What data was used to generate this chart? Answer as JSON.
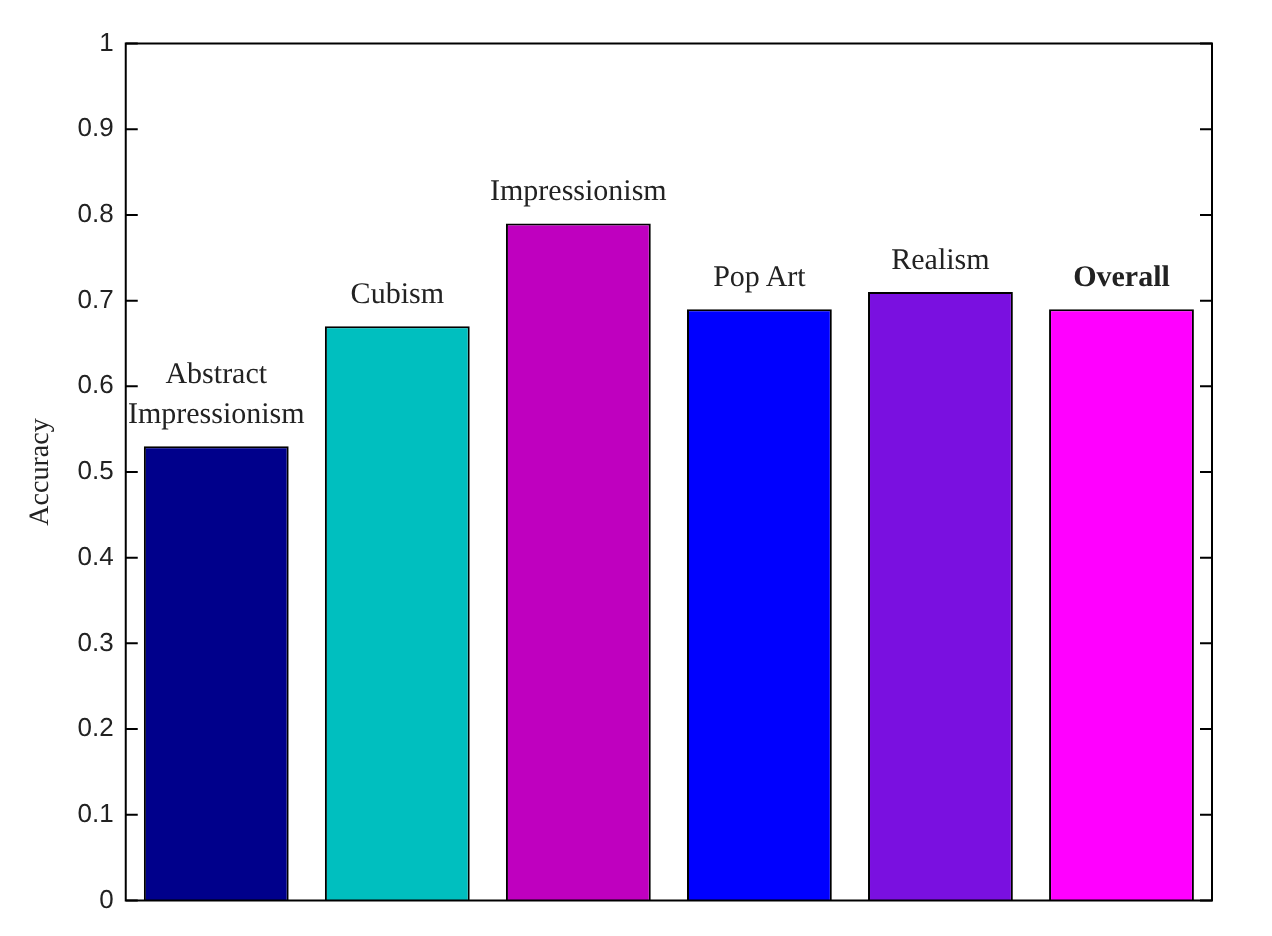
{
  "chart_data": {
    "type": "bar",
    "ylabel": "Accuracy",
    "categories": [
      "Abstract Impressionism",
      "Cubism",
      "Impressionism",
      "Pop Art",
      "Realism",
      "Overall"
    ],
    "values": [
      0.53,
      0.67,
      0.79,
      0.69,
      0.71,
      0.69
    ],
    "colors": [
      "#00008b",
      "#00bfbf",
      "#bf00bf",
      "#0000ff",
      "#7a10e0",
      "#ff00ff"
    ],
    "ylim": [
      0,
      1
    ],
    "yticks": [
      0,
      0.1,
      0.2,
      0.3,
      0.4,
      0.5,
      0.6,
      0.7,
      0.8,
      0.9,
      1
    ],
    "grid": false,
    "legend": false,
    "tick_labels": "y"
  }
}
